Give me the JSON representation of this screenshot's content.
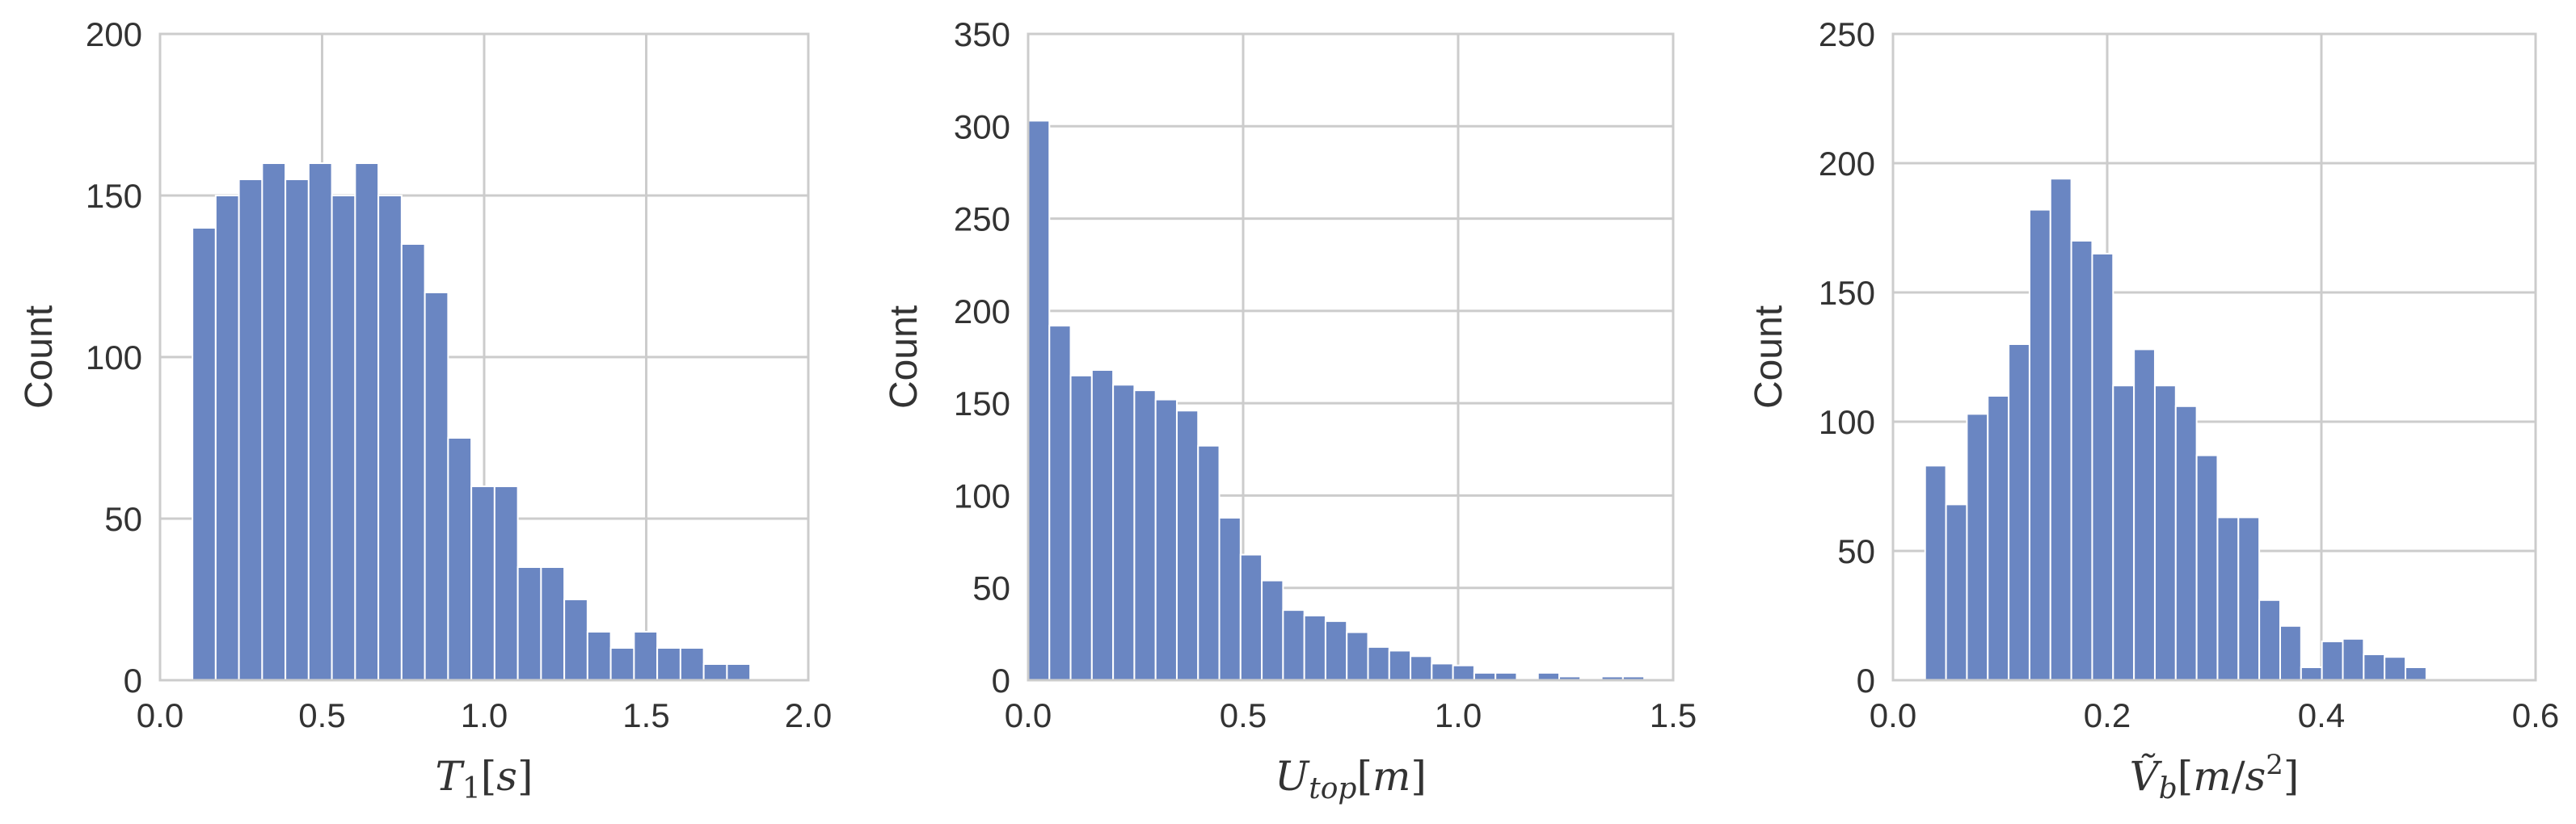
{
  "chart_data": [
    {
      "type": "bar",
      "title": "",
      "xlabel": "T_1[s]",
      "ylabel": "Count",
      "xlim": [
        0.0,
        2.0
      ],
      "ylim": [
        0,
        200
      ],
      "xticks": [
        0.0,
        0.5,
        1.0,
        1.5,
        2.0
      ],
      "xtick_labels": [
        "0.0",
        "0.5",
        "1.0",
        "1.5",
        "2.0"
      ],
      "yticks": [
        0,
        50,
        100,
        150,
        200
      ],
      "ytick_labels": [
        "0",
        "50",
        "100",
        "150",
        "200"
      ],
      "grid": true,
      "bar_color": "#6a86c2",
      "bin_start": 0.1,
      "bin_width": 0.0717,
      "values": [
        140,
        150,
        155,
        160,
        155,
        160,
        150,
        160,
        150,
        135,
        120,
        75,
        60,
        60,
        35,
        35,
        25,
        15,
        10,
        15,
        10,
        10,
        5,
        5
      ]
    },
    {
      "type": "bar",
      "title": "",
      "xlabel": "U_top[m]",
      "ylabel": "Count",
      "xlim": [
        0.0,
        1.5
      ],
      "ylim": [
        0,
        350
      ],
      "xticks": [
        0.0,
        0.5,
        1.0,
        1.5
      ],
      "xtick_labels": [
        "0.0",
        "0.5",
        "1.0",
        "1.5"
      ],
      "yticks": [
        0,
        50,
        100,
        150,
        200,
        250,
        300,
        350
      ],
      "ytick_labels": [
        "0",
        "50",
        "100",
        "150",
        "200",
        "250",
        "300",
        "350"
      ],
      "grid": true,
      "bar_color": "#6a86c2",
      "bin_start": 0.0,
      "bin_width": 0.0494,
      "values": [
        303,
        192,
        165,
        168,
        160,
        157,
        152,
        146,
        127,
        88,
        68,
        54,
        38,
        35,
        32,
        26,
        18,
        16,
        13,
        9,
        8,
        4,
        4,
        1,
        4,
        2,
        1,
        2,
        2
      ]
    },
    {
      "type": "bar",
      "title": "",
      "xlabel": "V~_b[m/s^2]",
      "ylabel": "Count",
      "xlim": [
        0.0,
        0.6
      ],
      "ylim": [
        0,
        250
      ],
      "xticks": [
        0.0,
        0.2,
        0.4,
        0.6
      ],
      "xtick_labels": [
        "0.0",
        "0.2",
        "0.4",
        "0.6"
      ],
      "yticks": [
        0,
        50,
        100,
        150,
        200,
        250
      ],
      "ytick_labels": [
        "0",
        "50",
        "100",
        "150",
        "200",
        "250"
      ],
      "grid": true,
      "bar_color": "#6a86c2",
      "bin_start": 0.03,
      "bin_width": 0.0195,
      "values": [
        83,
        68,
        103,
        110,
        130,
        182,
        194,
        170,
        165,
        114,
        128,
        114,
        106,
        87,
        63,
        63,
        31,
        21,
        5,
        15,
        16,
        10,
        9,
        5
      ]
    }
  ]
}
